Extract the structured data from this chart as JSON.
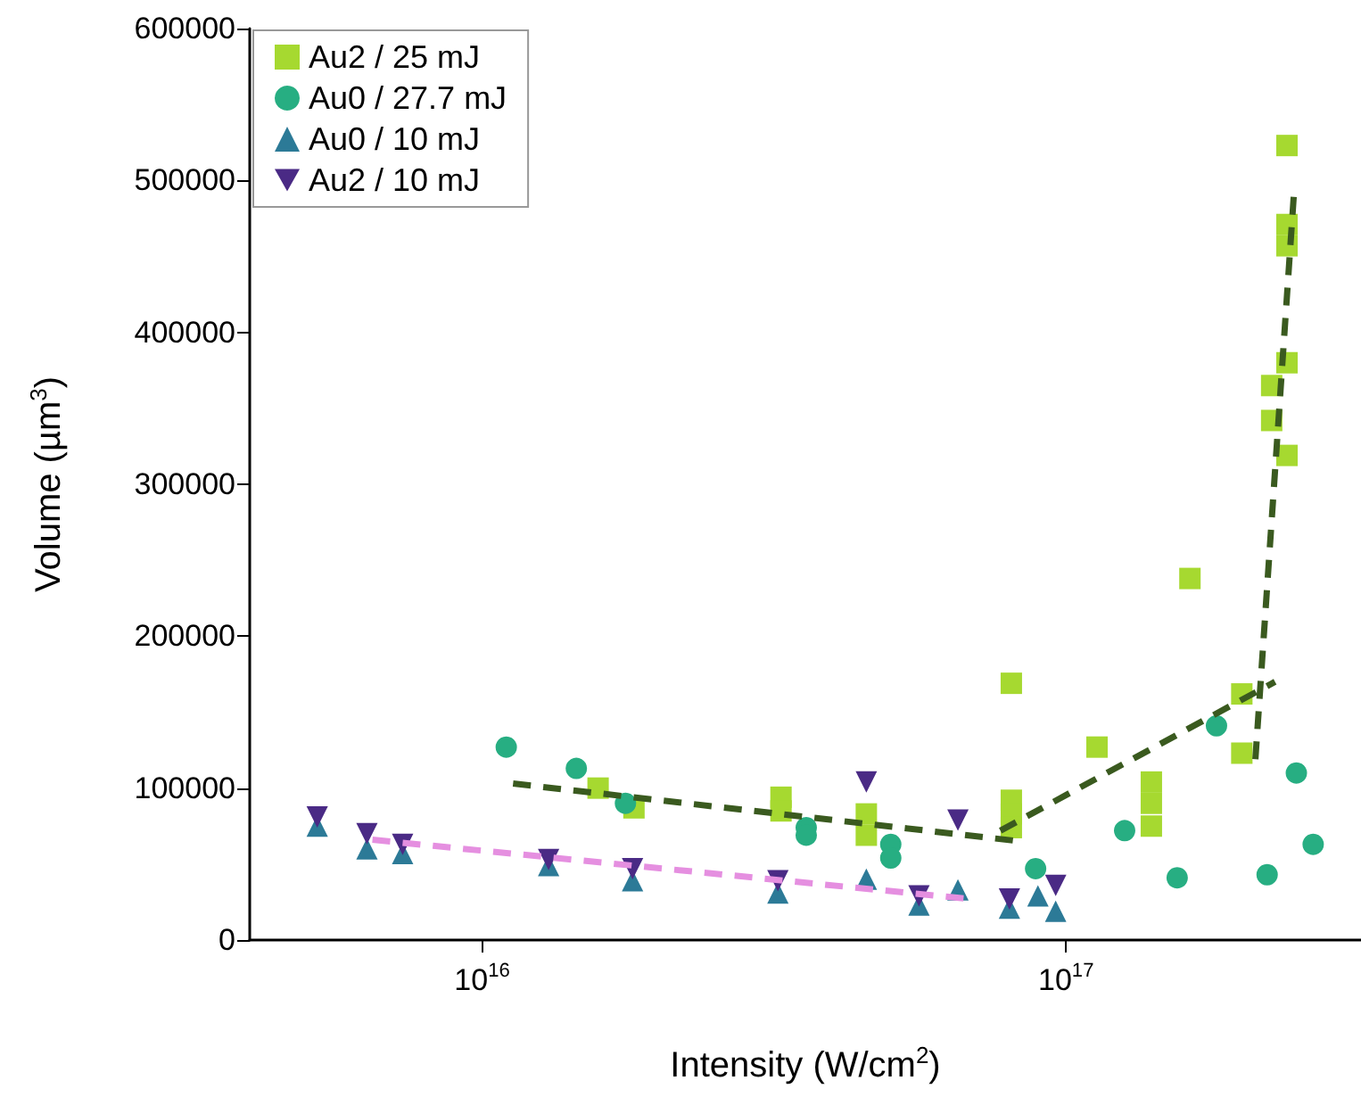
{
  "chart_data": {
    "type": "scatter",
    "xlabel": "Intensity (W/cm$^{2}$)",
    "ylabel": "Volume (µm$^{3}$)",
    "log": "x",
    "xlim": [
      4000000000000000.0,
      3.2e+17
    ],
    "xticks": [
      {
        "value": 1e+16,
        "label": "10$^{16}$"
      },
      {
        "value": 1e+17,
        "label": "10$^{17}$"
      }
    ],
    "ylim": [
      0,
      600000
    ],
    "yticks": [
      0,
      100000,
      200000,
      300000,
      400000,
      500000,
      600000
    ],
    "grid": false,
    "legend": "top left",
    "series": [
      {
        "name": "Au2 / 25 mJ",
        "color": "#a6d930",
        "marker": "square",
        "x": [
          1.58e+16,
          1.82e+16,
          3.25e+16,
          3.25e+16,
          4.55e+16,
          4.55e+16,
          8.06e+16,
          8.06e+16,
          8.06e+16,
          8.06e+16,
          1.13e+17,
          1.4e+17,
          1.4e+17,
          1.4e+17,
          1.63e+17,
          2e+17,
          2e+17,
          2.25e+17,
          2.25e+17,
          2.39e+17,
          2.39e+17,
          2.39e+17,
          2.39e+17,
          2.39e+17
        ],
        "values": [
          100000,
          87000,
          94000,
          85000,
          83000,
          69000,
          169000,
          92000,
          83000,
          74000,
          127000,
          104000,
          90000,
          75000,
          238000,
          162000,
          123000,
          365000,
          342000,
          523000,
          471000,
          457000,
          380000,
          319000
        ]
      },
      {
        "name": "Au0 / 27.7 mJ",
        "color": "#27ae82",
        "marker": "circle",
        "x": [
          1.1e+16,
          1.45e+16,
          1.76e+16,
          3.59e+16,
          3.59e+16,
          5.01e+16,
          5.01e+16,
          8.87e+16,
          1.26e+17,
          1.55e+17,
          1.81e+17,
          2.21e+17,
          2.48e+17,
          2.65e+17
        ],
        "values": [
          127000,
          113000,
          90000,
          74000,
          69000,
          63000,
          54000,
          47000,
          72000,
          41000,
          141000,
          43000,
          110000,
          63000
        ]
      },
      {
        "name": "Au0 / 10 mJ",
        "color": "#2c7a97",
        "marker": "triangle",
        "x": [
          5220000000000000.0,
          6350000000000000.0,
          7310000000000000.0,
          1.3e+16,
          1.81e+16,
          3.21e+16,
          4.55e+16,
          5.6e+16,
          6.53e+16,
          8e+16,
          8.95e+16,
          9.6e+16
        ],
        "values": [
          75000,
          60000,
          57000,
          49000,
          39000,
          31000,
          40000,
          23000,
          33000,
          21000,
          29000,
          19000
        ]
      },
      {
        "name": "Au2 / 10 mJ",
        "color": "#4a2a85",
        "marker": "triangle-down",
        "x": [
          5220000000000000.0,
          6350000000000000.0,
          7310000000000000.0,
          1.3e+16,
          1.81e+16,
          3.21e+16,
          4.55e+16,
          5.6e+16,
          6.53e+16,
          8e+16,
          9.6e+16
        ],
        "values": [
          81000,
          70000,
          63000,
          53000,
          47000,
          39000,
          104000,
          29000,
          79000,
          27000,
          36000
        ]
      },
      {
        "type": "line",
        "color": "#3a5a1f",
        "line_style": "dashed",
        "marker": "none",
        "x": [
          1.13e+16,
          8.34e+16
        ],
        "values": [
          103000,
          65000
        ]
      },
      {
        "type": "line",
        "color": "#3a5a1f",
        "line_style": "dashed",
        "marker": "none",
        "x": [
          7.72e+16,
          2.28e+17
        ],
        "values": [
          72000,
          170000
        ]
      },
      {
        "type": "line",
        "color": "#3a5a1f",
        "line_style": "dashed",
        "marker": "none",
        "x": [
          2.11e+17,
          2.46e+17
        ],
        "values": [
          119000,
          495000
        ]
      },
      {
        "type": "line",
        "color": "#e58fe0",
        "line_style": "dashed",
        "marker": "none",
        "x": [
          6490000000000000.0,
          6.85e+16
        ],
        "values": [
          66000,
          27000
        ]
      }
    ]
  }
}
